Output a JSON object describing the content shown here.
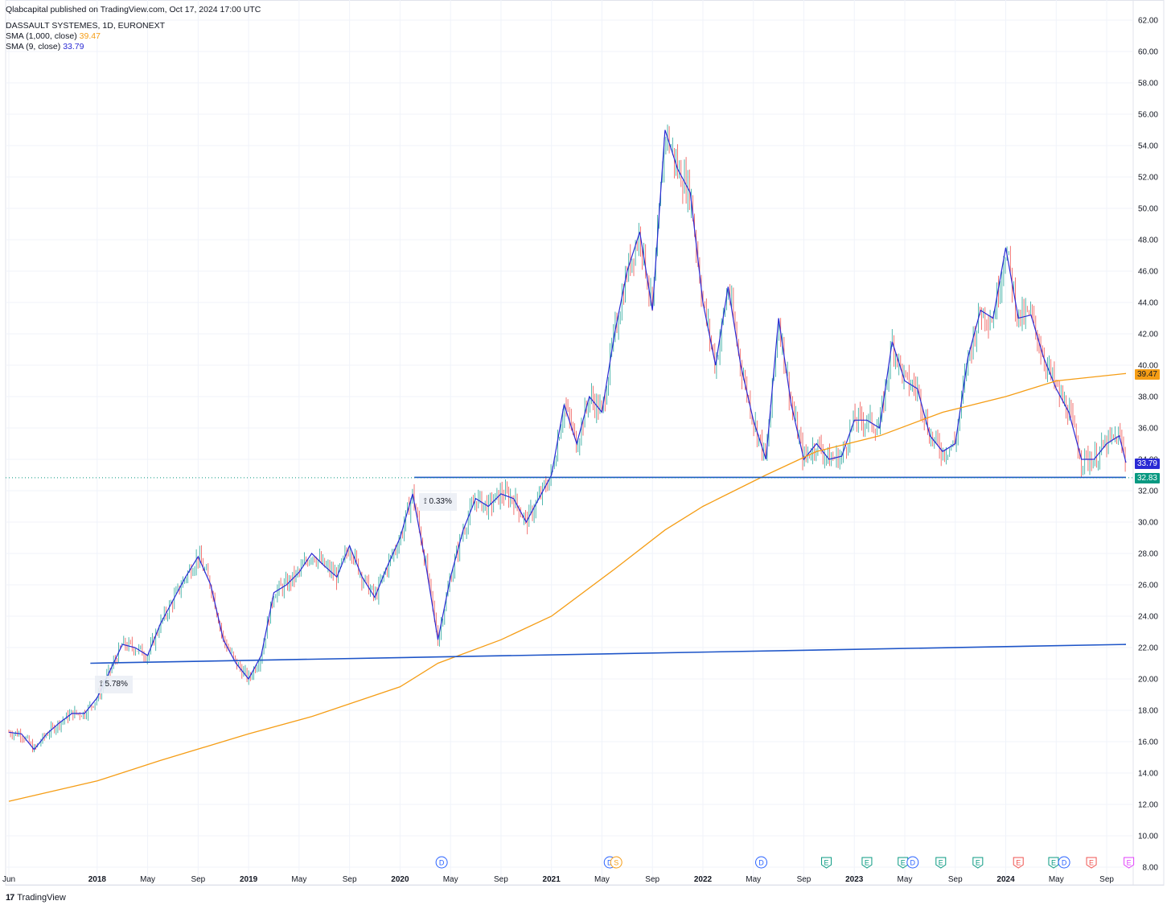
{
  "header": {
    "publisher_line": "Qlabcapital published on TradingView.com, Oct 17, 2024 17:00 UTC",
    "symbol_line": "DASSAULT SYSTEMES, 1D, EURONEXT",
    "sma1000_label": "SMA (1,000, close)",
    "sma1000_value": "39.47",
    "sma9_label": "SMA (9, close)",
    "sma9_value": "33.79"
  },
  "footer": {
    "brand": "TradingView",
    "logo_mark": "17"
  },
  "price_tags": {
    "sma1000": "39.47",
    "sma9": "33.79",
    "last": "32.83"
  },
  "measures": [
    {
      "label": "5.78%"
    },
    {
      "label": "0.33%"
    }
  ],
  "colors": {
    "sma1000": "#f59d15",
    "sma9": "#2a2ad4",
    "trendline": "#1e55c8",
    "up": "#26a69a",
    "down": "#ef5350",
    "grid": "#f0f3fa",
    "last_price": "#089981"
  },
  "chart_data": {
    "type": "line",
    "title": "DASSAULT SYSTEMES, 1D, EURONEXT",
    "ylim": [
      8,
      62
    ],
    "y_ticks": [
      "62.00",
      "60.00",
      "58.00",
      "56.00",
      "54.00",
      "52.00",
      "50.00",
      "48.00",
      "46.00",
      "44.00",
      "42.00",
      "40.00",
      "38.00",
      "36.00",
      "34.00",
      "32.00",
      "30.00",
      "28.00",
      "26.00",
      "24.00",
      "22.00",
      "20.00",
      "18.00",
      "16.00",
      "14.00",
      "12.00",
      "10.00",
      "8.00"
    ],
    "x_ticks": [
      "Jun",
      "2018",
      "May",
      "Sep",
      "2019",
      "May",
      "Sep",
      "2020",
      "May",
      "Sep",
      "2021",
      "May",
      "Sep",
      "2022",
      "May",
      "Sep",
      "2023",
      "May",
      "Sep",
      "2024",
      "May",
      "Sep"
    ],
    "x_tick_dates": [
      "2017-06",
      "2018-01",
      "2018-05",
      "2018-09",
      "2019-01",
      "2019-05",
      "2019-09",
      "2020-01",
      "2020-05",
      "2020-09",
      "2021-01",
      "2021-05",
      "2021-09",
      "2022-01",
      "2022-05",
      "2022-09",
      "2023-01",
      "2023-05",
      "2023-09",
      "2024-01",
      "2024-05",
      "2024-09"
    ],
    "series": [
      {
        "name": "SMA (9, close)",
        "points": [
          [
            "2017-06",
            16.6
          ],
          [
            "2017-07",
            16.5
          ],
          [
            "2017-08",
            15.5
          ],
          [
            "2017-09",
            16.5
          ],
          [
            "2017-10",
            17.2
          ],
          [
            "2017-11",
            17.8
          ],
          [
            "2017-12",
            17.8
          ],
          [
            "2018-01",
            18.8
          ],
          [
            "2018-02",
            20.5
          ],
          [
            "2018-03",
            22.2
          ],
          [
            "2018-04",
            22.0
          ],
          [
            "2018-05",
            21.5
          ],
          [
            "2018-06",
            23.5
          ],
          [
            "2018-07",
            25.0
          ],
          [
            "2018-08",
            26.5
          ],
          [
            "2018-09",
            27.8
          ],
          [
            "2018-10",
            26.0
          ],
          [
            "2018-11",
            22.5
          ],
          [
            "2018-12",
            21.0
          ],
          [
            "2019-01",
            20.0
          ],
          [
            "2019-02",
            21.5
          ],
          [
            "2019-03",
            25.5
          ],
          [
            "2019-04",
            26.0
          ],
          [
            "2019-05",
            26.8
          ],
          [
            "2019-06",
            28.0
          ],
          [
            "2019-07",
            27.2
          ],
          [
            "2019-08",
            26.5
          ],
          [
            "2019-09",
            28.5
          ],
          [
            "2019-10",
            26.5
          ],
          [
            "2019-11",
            25.2
          ],
          [
            "2019-12",
            27.2
          ],
          [
            "2020-01",
            29.0
          ],
          [
            "2020-02",
            31.8
          ],
          [
            "2020-03",
            27.5
          ],
          [
            "2020-04",
            22.5
          ],
          [
            "2020-05",
            26.5
          ],
          [
            "2020-06",
            29.5
          ],
          [
            "2020-07",
            31.5
          ],
          [
            "2020-08",
            31.0
          ],
          [
            "2020-09",
            31.8
          ],
          [
            "2020-10",
            31.5
          ],
          [
            "2020-11",
            30.0
          ],
          [
            "2020-12",
            31.5
          ],
          [
            "2021-01",
            33.0
          ],
          [
            "2021-02",
            37.5
          ],
          [
            "2021-03",
            35.0
          ],
          [
            "2021-04",
            38.0
          ],
          [
            "2021-05",
            37.0
          ],
          [
            "2021-06",
            42.0
          ],
          [
            "2021-07",
            46.0
          ],
          [
            "2021-08",
            48.5
          ],
          [
            "2021-09",
            43.5
          ],
          [
            "2021-10",
            55.0
          ],
          [
            "2021-11",
            52.5
          ],
          [
            "2021-12",
            51.0
          ],
          [
            "2022-01",
            44.0
          ],
          [
            "2022-02",
            40.0
          ],
          [
            "2022-03",
            45.0
          ],
          [
            "2022-04",
            40.0
          ],
          [
            "2022-05",
            36.5
          ],
          [
            "2022-06",
            34.0
          ],
          [
            "2022-07",
            43.0
          ],
          [
            "2022-08",
            37.5
          ],
          [
            "2022-09",
            34.0
          ],
          [
            "2022-10",
            35.0
          ],
          [
            "2022-11",
            34.0
          ],
          [
            "2022-12",
            34.2
          ],
          [
            "2023-01",
            36.5
          ],
          [
            "2023-02",
            36.5
          ],
          [
            "2023-03",
            36.0
          ],
          [
            "2023-04",
            41.5
          ],
          [
            "2023-05",
            39.0
          ],
          [
            "2023-06",
            38.5
          ],
          [
            "2023-07",
            35.5
          ],
          [
            "2023-08",
            34.5
          ],
          [
            "2023-09",
            35.0
          ],
          [
            "2023-10",
            40.5
          ],
          [
            "2023-11",
            43.5
          ],
          [
            "2023-12",
            43.0
          ],
          [
            "2024-01",
            47.5
          ],
          [
            "2024-02",
            43.0
          ],
          [
            "2024-03",
            43.2
          ],
          [
            "2024-04",
            40.5
          ],
          [
            "2024-05",
            38.5
          ],
          [
            "2024-06",
            37.0
          ],
          [
            "2024-07",
            34.0
          ],
          [
            "2024-08",
            34.0
          ],
          [
            "2024-09",
            35.0
          ],
          [
            "2024-10",
            35.5
          ],
          [
            "2024-10-17",
            33.79
          ]
        ]
      },
      {
        "name": "SMA (1,000, close)",
        "points": [
          [
            "2017-06",
            12.2
          ],
          [
            "2018-01",
            13.5
          ],
          [
            "2018-06",
            14.8
          ],
          [
            "2019-01",
            16.5
          ],
          [
            "2019-06",
            17.6
          ],
          [
            "2020-01",
            19.5
          ],
          [
            "2020-04",
            21.0
          ],
          [
            "2020-09",
            22.5
          ],
          [
            "2021-01",
            24.0
          ],
          [
            "2021-06",
            27.0
          ],
          [
            "2021-10",
            29.5
          ],
          [
            "2022-01",
            31.0
          ],
          [
            "2022-06",
            33.0
          ],
          [
            "2022-10",
            34.5
          ],
          [
            "2023-03",
            35.5
          ],
          [
            "2023-08",
            37.0
          ],
          [
            "2024-01",
            38.0
          ],
          [
            "2024-05",
            39.0
          ],
          [
            "2024-10-17",
            39.47
          ]
        ]
      }
    ],
    "trendlines": [
      {
        "from": [
          "2017-12-15",
          21.0
        ],
        "to": [
          "2024-10-17",
          22.2
        ]
      },
      {
        "from": [
          "2020-02-05",
          32.85
        ],
        "to": [
          "2024-10-17",
          32.85
        ]
      }
    ],
    "last_price": 32.83,
    "grid": true
  }
}
